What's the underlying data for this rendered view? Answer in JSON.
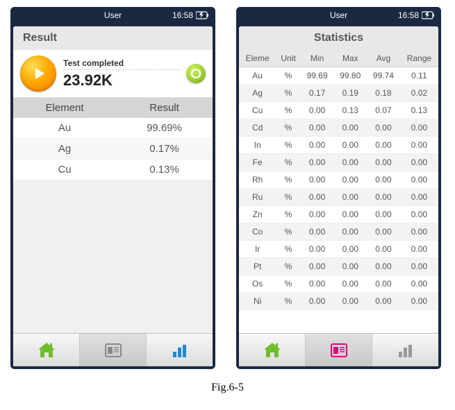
{
  "caption": "Fig.6-5",
  "status": {
    "user": "User",
    "time": "16:58"
  },
  "colors": {
    "phone_frame": "#1a2942",
    "play_gradient": [
      "#ffdd55",
      "#ffaa00",
      "#ff7700"
    ],
    "refresh_gradient": [
      "#d4f05a",
      "#9acd32",
      "#6b8e23"
    ],
    "home_icon": "#6fbf2b",
    "doc_icon_inactive": "#888888",
    "doc_icon_active": "#e6007e",
    "chart_icon_active": "#1e88d2",
    "chart_icon_inactive": "#888888"
  },
  "left": {
    "header": "Result",
    "test_status": "Test completed",
    "measurement": "23.92K",
    "table": {
      "columns": [
        "Element",
        "Result"
      ],
      "rows": [
        [
          "Au",
          "99.69%"
        ],
        [
          "Ag",
          "0.17%"
        ],
        [
          "Cu",
          "0.13%"
        ]
      ]
    },
    "nav_active_index": 1
  },
  "right": {
    "header": "Statistics",
    "table": {
      "columns": [
        "Eleme",
        "Unit",
        "Min",
        "Max",
        "Avg",
        "Range"
      ],
      "rows": [
        [
          "Au",
          "%",
          "99.69",
          "99.80",
          "99.74",
          "0.11"
        ],
        [
          "Ag",
          "%",
          "0.17",
          "0.19",
          "0.18",
          "0.02"
        ],
        [
          "Cu",
          "%",
          "0.00",
          "0.13",
          "0.07",
          "0.13"
        ],
        [
          "Cd",
          "%",
          "0.00",
          "0.00",
          "0.00",
          "0.00"
        ],
        [
          "In",
          "%",
          "0.00",
          "0.00",
          "0.00",
          "0.00"
        ],
        [
          "Fe",
          "%",
          "0.00",
          "0.00",
          "0.00",
          "0.00"
        ],
        [
          "Rh",
          "%",
          "0.00",
          "0.00",
          "0.00",
          "0.00"
        ],
        [
          "Ru",
          "%",
          "0.00",
          "0.00",
          "0.00",
          "0.00"
        ],
        [
          "Zn",
          "%",
          "0.00",
          "0.00",
          "0.00",
          "0.00"
        ],
        [
          "Co",
          "%",
          "0.00",
          "0.00",
          "0.00",
          "0.00"
        ],
        [
          "Ir",
          "%",
          "0.00",
          "0.00",
          "0.00",
          "0.00"
        ],
        [
          "Pt",
          "%",
          "0.00",
          "0.00",
          "0.00",
          "0.00"
        ],
        [
          "Os",
          "%",
          "0.00",
          "0.00",
          "0.00",
          "0.00"
        ],
        [
          "Ni",
          "%",
          "0.00",
          "0.00",
          "0.00",
          "0.00"
        ]
      ]
    },
    "nav_active_index": 1
  }
}
